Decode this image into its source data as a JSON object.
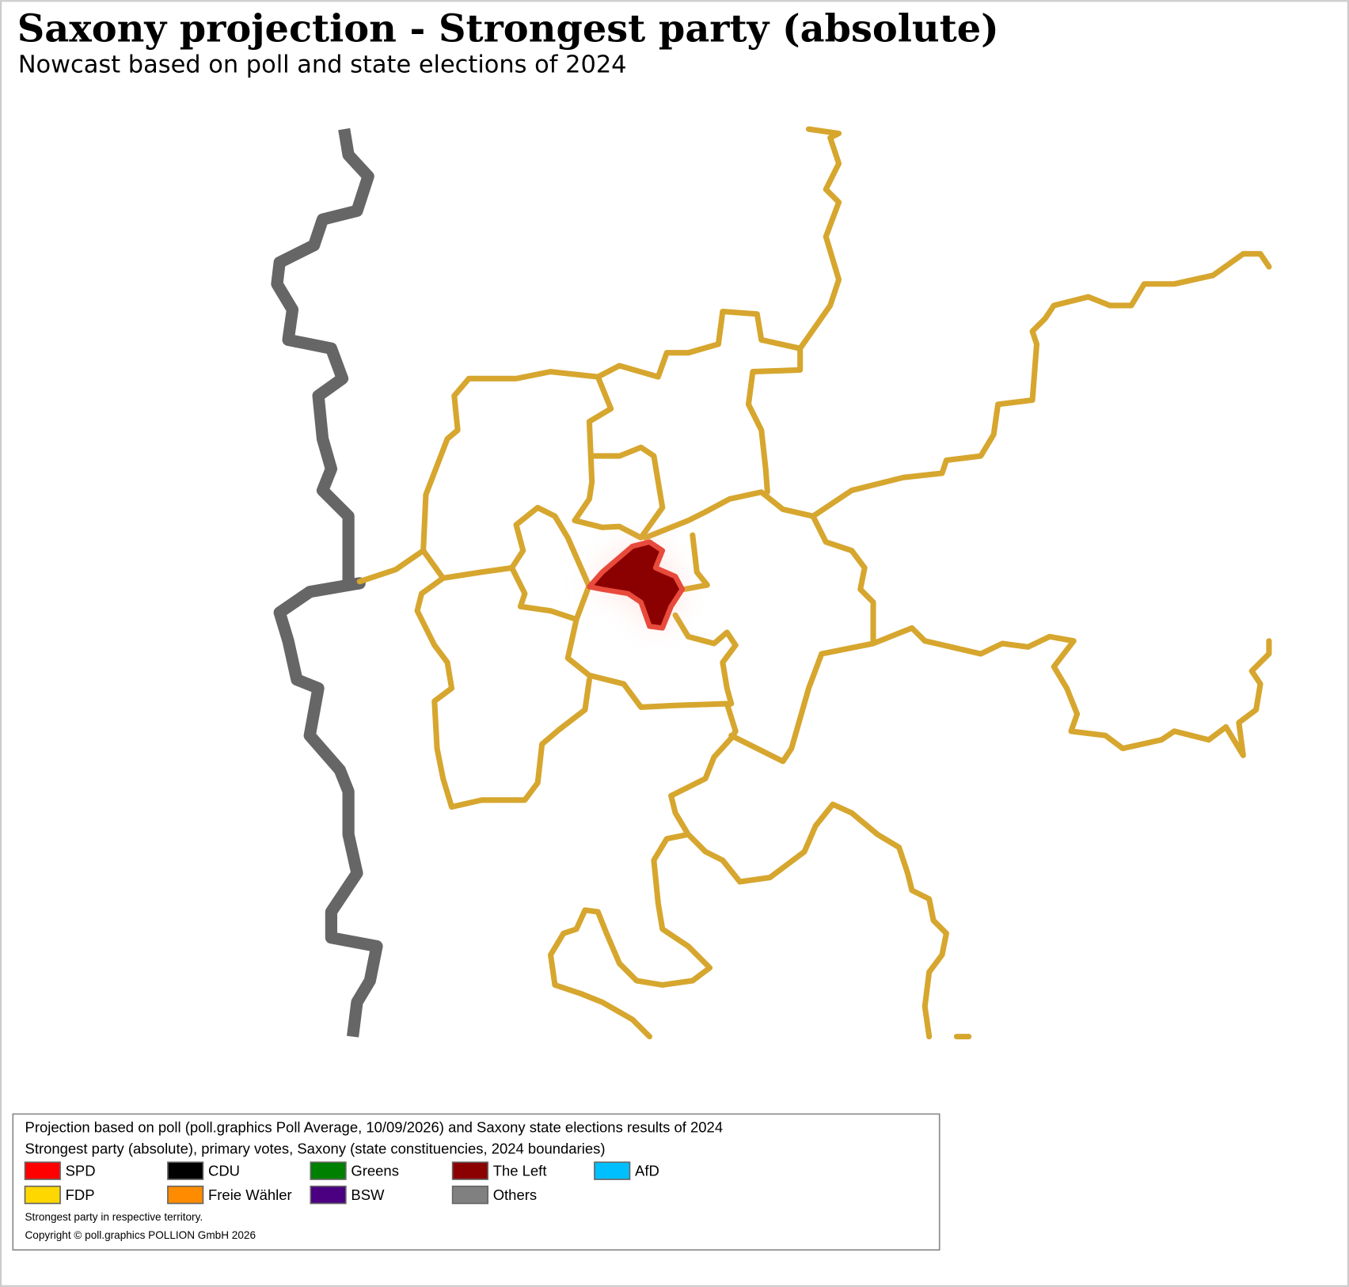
{
  "header": {
    "title": "Saxony projection - Strongest party (absolute)",
    "subtitle": "Nowcast based on poll and state elections of 2024"
  },
  "legend": {
    "lines": [
      "Projection based on poll (poll.graphics Poll Average, 10/09/2026) and Saxony state elections results of 2024",
      "Strongest party (absolute), primary votes, Saxony (state constituencies, 2024 boundaries)"
    ],
    "items": [
      {
        "label": "SPD",
        "color": "#ff0000"
      },
      {
        "label": "CDU",
        "color": "#000000"
      },
      {
        "label": "Greens",
        "color": "#008000"
      },
      {
        "label": "The Left",
        "color": "#8b0000"
      },
      {
        "label": "AfD",
        "color": "#00bfff"
      },
      {
        "label": "FDP",
        "color": "#ffd700"
      },
      {
        "label": "Freie Wähler",
        "color": "#ff8c00"
      },
      {
        "label": "BSW",
        "color": "#4b0082"
      },
      {
        "label": "Others",
        "color": "#808080"
      }
    ],
    "notes": [
      "Strongest party in respective territory.",
      "Copyright © poll.graphics POLLION GmbH 2026"
    ]
  }
}
